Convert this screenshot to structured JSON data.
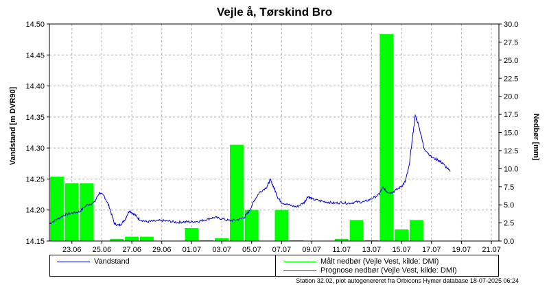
{
  "title": "Vejle å, Tørskind Bro",
  "footnote": "Station 32.02, plot autogenereret fra Orbicons Hymer database 18-07-2025 06:24",
  "colors": {
    "water": "#0000cc",
    "rain": "#00ff00",
    "forecast": "#008000",
    "grid": "#b0b0b0"
  },
  "legend": {
    "water": "Vandstand",
    "measured": "Målt nedbør (Vejle Vest, kilde: DMI)",
    "forecast": "Prognose nedbør (Vejle Vest, kilde: DMI)"
  },
  "chart_data": {
    "type": "bar+line",
    "title": "Vejle å, Tørskind Bro",
    "ylabel_left": "Vandstand [m DVR90]",
    "ylabel_right": "Nedbør [mm]",
    "x_range_days": [
      "2025-06-22",
      "2025-07-22"
    ],
    "ylim_left": [
      14.15,
      14.5
    ],
    "ylim_right": [
      0,
      30
    ],
    "grid": true,
    "x_ticks": [
      "23.06",
      "25.06",
      "27.06",
      "29.06",
      "01.07",
      "03.07",
      "05.07",
      "07.07",
      "09.07",
      "11.07",
      "13.07",
      "15.07",
      "17.07",
      "19.07",
      "21.07"
    ],
    "y_ticks_left": [
      "14.15",
      "14.20",
      "14.25",
      "14.30",
      "14.35",
      "14.40",
      "14.45",
      "14.50"
    ],
    "y_ticks_right": [
      "0.0",
      "2.5",
      "5.0",
      "7.5",
      "10.0",
      "12.5",
      "15.0",
      "17.5",
      "20.0",
      "22.5",
      "25.0",
      "27.5",
      "30.0"
    ],
    "rain_bars": [
      {
        "date": "2025-06-22",
        "mm": 8.9
      },
      {
        "date": "2025-06-23",
        "mm": 8.0
      },
      {
        "date": "2025-06-24",
        "mm": 8.0
      },
      {
        "date": "2025-06-26",
        "mm": 0.3
      },
      {
        "date": "2025-06-27",
        "mm": 0.6
      },
      {
        "date": "2025-06-28",
        "mm": 0.6
      },
      {
        "date": "2025-07-01",
        "mm": 1.8
      },
      {
        "date": "2025-07-02",
        "mm": 0.1
      },
      {
        "date": "2025-07-03",
        "mm": 0.4
      },
      {
        "date": "2025-07-04",
        "mm": 13.3
      },
      {
        "date": "2025-07-05",
        "mm": 4.3
      },
      {
        "date": "2025-07-07",
        "mm": 4.3
      },
      {
        "date": "2025-07-08",
        "mm": 0.1
      },
      {
        "date": "2025-07-11",
        "mm": 0.3
      },
      {
        "date": "2025-07-12",
        "mm": 2.9
      },
      {
        "date": "2025-07-13",
        "mm": 0.1
      },
      {
        "date": "2025-07-14",
        "mm": 28.6
      },
      {
        "date": "2025-07-15",
        "mm": 1.6
      },
      {
        "date": "2025-07-16",
        "mm": 2.9
      }
    ],
    "water_level": [
      {
        "t": "2025-06-22 00:00",
        "v": 14.178
      },
      {
        "t": "2025-06-22 12:00",
        "v": 14.185
      },
      {
        "t": "2025-06-23 00:00",
        "v": 14.192
      },
      {
        "t": "2025-06-23 12:00",
        "v": 14.195
      },
      {
        "t": "2025-06-24 00:00",
        "v": 14.197
      },
      {
        "t": "2025-06-24 12:00",
        "v": 14.208
      },
      {
        "t": "2025-06-25 00:00",
        "v": 14.212
      },
      {
        "t": "2025-06-25 08:00",
        "v": 14.228
      },
      {
        "t": "2025-06-25 16:00",
        "v": 14.222
      },
      {
        "t": "2025-06-26 00:00",
        "v": 14.205
      },
      {
        "t": "2025-06-26 08:00",
        "v": 14.178
      },
      {
        "t": "2025-06-26 16:00",
        "v": 14.175
      },
      {
        "t": "2025-06-27 00:00",
        "v": 14.183
      },
      {
        "t": "2025-06-27 08:00",
        "v": 14.199
      },
      {
        "t": "2025-06-27 16:00",
        "v": 14.193
      },
      {
        "t": "2025-06-28 00:00",
        "v": 14.185
      },
      {
        "t": "2025-06-28 12:00",
        "v": 14.181
      },
      {
        "t": "2025-06-29 00:00",
        "v": 14.182
      },
      {
        "t": "2025-06-29 12:00",
        "v": 14.183
      },
      {
        "t": "2025-06-30 00:00",
        "v": 14.182
      },
      {
        "t": "2025-06-30 12:00",
        "v": 14.18
      },
      {
        "t": "2025-07-01 00:00",
        "v": 14.181
      },
      {
        "t": "2025-07-01 12:00",
        "v": 14.181
      },
      {
        "t": "2025-07-02 00:00",
        "v": 14.182
      },
      {
        "t": "2025-07-02 12:00",
        "v": 14.185
      },
      {
        "t": "2025-07-03 00:00",
        "v": 14.188
      },
      {
        "t": "2025-07-03 12:00",
        "v": 14.186
      },
      {
        "t": "2025-07-04 00:00",
        "v": 14.183
      },
      {
        "t": "2025-07-04 12:00",
        "v": 14.184
      },
      {
        "t": "2025-07-05 00:00",
        "v": 14.188
      },
      {
        "t": "2025-07-05 08:00",
        "v": 14.198
      },
      {
        "t": "2025-07-05 16:00",
        "v": 14.215
      },
      {
        "t": "2025-07-06 00:00",
        "v": 14.228
      },
      {
        "t": "2025-07-06 12:00",
        "v": 14.237
      },
      {
        "t": "2025-07-06 18:00",
        "v": 14.249
      },
      {
        "t": "2025-07-07 00:00",
        "v": 14.235
      },
      {
        "t": "2025-07-07 06:00",
        "v": 14.22
      },
      {
        "t": "2025-07-07 12:00",
        "v": 14.212
      },
      {
        "t": "2025-07-08 00:00",
        "v": 14.208
      },
      {
        "t": "2025-07-08 12:00",
        "v": 14.205
      },
      {
        "t": "2025-07-09 00:00",
        "v": 14.212
      },
      {
        "t": "2025-07-09 06:00",
        "v": 14.222
      },
      {
        "t": "2025-07-09 12:00",
        "v": 14.218
      },
      {
        "t": "2025-07-10 00:00",
        "v": 14.215
      },
      {
        "t": "2025-07-10 12:00",
        "v": 14.213
      },
      {
        "t": "2025-07-11 00:00",
        "v": 14.211
      },
      {
        "t": "2025-07-11 12:00",
        "v": 14.212
      },
      {
        "t": "2025-07-12 00:00",
        "v": 14.211
      },
      {
        "t": "2025-07-12 12:00",
        "v": 14.213
      },
      {
        "t": "2025-07-13 00:00",
        "v": 14.213
      },
      {
        "t": "2025-07-13 12:00",
        "v": 14.218
      },
      {
        "t": "2025-07-14 00:00",
        "v": 14.225
      },
      {
        "t": "2025-07-14 06:00",
        "v": 14.236
      },
      {
        "t": "2025-07-14 12:00",
        "v": 14.23
      },
      {
        "t": "2025-07-14 18:00",
        "v": 14.228
      },
      {
        "t": "2025-07-15 00:00",
        "v": 14.23
      },
      {
        "t": "2025-07-15 12:00",
        "v": 14.238
      },
      {
        "t": "2025-07-15 18:00",
        "v": 14.246
      },
      {
        "t": "2025-07-16 00:00",
        "v": 14.27
      },
      {
        "t": "2025-07-16 06:00",
        "v": 14.32
      },
      {
        "t": "2025-07-16 10:00",
        "v": 14.353
      },
      {
        "t": "2025-07-16 16:00",
        "v": 14.335
      },
      {
        "t": "2025-07-17 00:00",
        "v": 14.3
      },
      {
        "t": "2025-07-17 12:00",
        "v": 14.285
      },
      {
        "t": "2025-07-18 00:00",
        "v": 14.28
      },
      {
        "t": "2025-07-18 06:00",
        "v": 14.275
      },
      {
        "t": "2025-07-18 18:00",
        "v": 14.262
      }
    ]
  }
}
